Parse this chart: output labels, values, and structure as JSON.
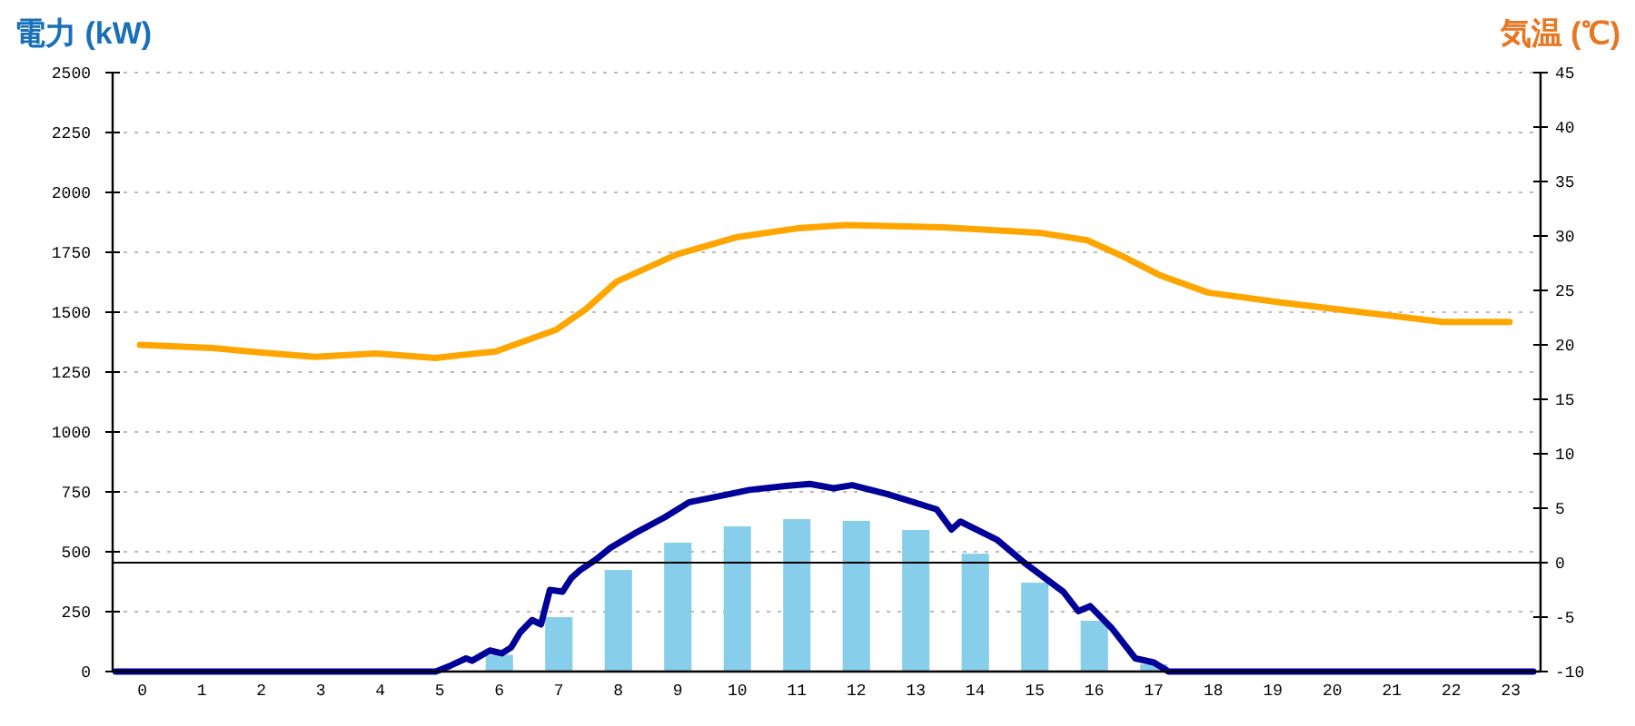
{
  "chart_data": {
    "type": "bar",
    "ylabel": "電力 (kW)",
    "y2label": "気温 (℃)",
    "x": [
      0,
      1,
      2,
      3,
      4,
      5,
      6,
      7,
      8,
      9,
      10,
      11,
      12,
      13,
      14,
      15,
      16,
      17,
      18,
      19,
      20,
      21,
      22,
      23
    ],
    "xlim": [
      -0.5,
      23.5
    ],
    "xticks": [
      0,
      1,
      2,
      3,
      4,
      5,
      6,
      7,
      8,
      9,
      10,
      11,
      12,
      13,
      14,
      15,
      16,
      17,
      18,
      19,
      20,
      21,
      22,
      23
    ],
    "series": [
      {
        "color": "#87ceeb",
        "values": [
          0,
          0,
          0,
          0,
          0,
          0,
          70,
          227,
          424,
          538,
          606,
          636,
          629,
          591,
          492,
          371,
          212,
          30,
          0,
          0,
          0,
          0,
          0,
          0
        ]
      },
      {
        "type": "line",
        "color": "#000099",
        "x": [
          -0.45,
          4.93,
          5.18,
          5.44,
          5.54,
          5.84,
          6.04,
          6.2,
          6.35,
          6.55,
          6.7,
          6.85,
          7.06,
          7.21,
          7.36,
          7.62,
          7.87,
          8.27,
          8.78,
          9.19,
          9.8,
          10.2,
          10.81,
          11.22,
          11.62,
          11.93,
          12.53,
          13.35,
          13.6,
          13.75,
          14.36,
          14.82,
          15.48,
          15.73,
          15.93,
          16.29,
          16.69,
          17,
          17.25,
          23.38
        ],
        "values": [
          0,
          0,
          25,
          55,
          45,
          88,
          76,
          101,
          164,
          215,
          197,
          341,
          333,
          391,
          424,
          467,
          517,
          576,
          644,
          707,
          737,
          758,
          775,
          783,
          765,
          778,
          740,
          677,
          593,
          626,
          551,
          455,
          333,
          252,
          273,
          182,
          55,
          38,
          0,
          0
        ]
      },
      {
        "type": "line",
        "axis": "y2",
        "color": "#ffa500",
        "x": [
          -0.04,
          1.18,
          2.19,
          2.9,
          3.92,
          4.93,
          5.94,
          6.96,
          7.46,
          7.97,
          8.98,
          10,
          11.01,
          11.82,
          13.45,
          15.07,
          15.88,
          16.49,
          17.1,
          17.91,
          19.13,
          20.65,
          21.86,
          22.98
        ],
        "values": [
          20,
          19.7,
          19.2,
          18.9,
          19.2,
          18.8,
          19.4,
          21.4,
          23.3,
          25.8,
          28.3,
          29.9,
          30.7,
          31,
          30.8,
          30.3,
          29.6,
          28.1,
          26.4,
          24.8,
          23.9,
          22.9,
          22.1,
          22.1
        ]
      }
    ],
    "ylim": [
      0,
      2500
    ],
    "yticks": [
      0,
      250,
      500,
      750,
      1000,
      1250,
      1500,
      1750,
      2000,
      2250,
      2500
    ],
    "y2lim": [
      -10,
      45
    ],
    "y2ticks": [
      -10,
      -5,
      0,
      5,
      10,
      15,
      20,
      25,
      30,
      35,
      40,
      45
    ],
    "grid": "y",
    "ref_lines": [
      {
        "axis": "y2",
        "value": 0,
        "color": "#000000"
      }
    ]
  }
}
